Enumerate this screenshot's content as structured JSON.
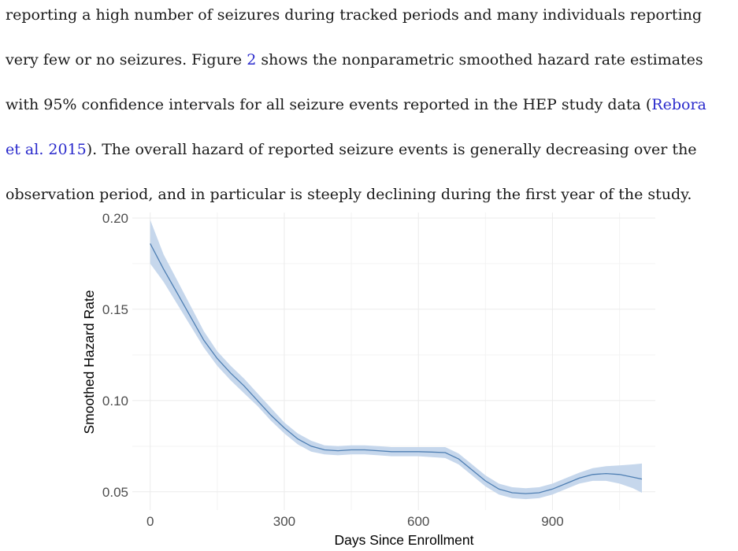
{
  "paragraph": {
    "line1": "reporting a high number of seizures during tracked periods and many individuals reporting",
    "line2_pre": "very few or no seizures. Figure ",
    "line2_fig": "2",
    "line2_post": " shows the nonparametric smoothed hazard rate estimates",
    "line3_pre": "with 95% confidence intervals for all seizure events reported in the HEP study data (",
    "line3_cite": "Rebora",
    "line4_cite": "et al. 2015",
    "line4_post": ").  The overall hazard of reported seizure events is generally decreasing over the",
    "line5": "observation period, and in particular is steeply declining during the first year of the study."
  },
  "chart_data": {
    "type": "line",
    "title": "",
    "xlabel": "Days Since Enrollment",
    "ylabel": "Smoothed Hazard Rate",
    "xlim": [
      -40,
      1130
    ],
    "ylim": [
      0.04,
      0.203
    ],
    "xticks": [
      0,
      300,
      600,
      900
    ],
    "xtick_labels": [
      "0",
      "300",
      "600",
      "900"
    ],
    "yticks": [
      0.05,
      0.1,
      0.15,
      0.2
    ],
    "ytick_labels": [
      "0.05",
      "0.10",
      "0.15",
      "0.20"
    ],
    "grid": true,
    "series_color": "#4f7fb3",
    "ci_color": "#c6d7ec",
    "x": [
      0,
      30,
      60,
      90,
      120,
      150,
      180,
      210,
      240,
      270,
      300,
      330,
      360,
      390,
      420,
      450,
      480,
      510,
      540,
      570,
      600,
      630,
      660,
      690,
      720,
      750,
      780,
      810,
      840,
      870,
      900,
      930,
      960,
      990,
      1020,
      1050,
      1080,
      1100
    ],
    "y": [
      0.186,
      0.172,
      0.159,
      0.146,
      0.133,
      0.123,
      0.115,
      0.108,
      0.1,
      0.092,
      0.085,
      0.079,
      0.075,
      0.073,
      0.0725,
      0.073,
      0.073,
      0.0725,
      0.072,
      0.072,
      0.072,
      0.0718,
      0.0715,
      0.068,
      0.062,
      0.056,
      0.0515,
      0.0495,
      0.049,
      0.0495,
      0.0515,
      0.0545,
      0.0575,
      0.0595,
      0.06,
      0.0595,
      0.058,
      0.057
    ],
    "lower": [
      0.175,
      0.165,
      0.153,
      0.141,
      0.129,
      0.119,
      0.111,
      0.104,
      0.097,
      0.089,
      0.082,
      0.076,
      0.072,
      0.0705,
      0.07,
      0.0705,
      0.0705,
      0.07,
      0.0695,
      0.0695,
      0.0695,
      0.069,
      0.0685,
      0.065,
      0.059,
      0.053,
      0.0485,
      0.0465,
      0.046,
      0.0465,
      0.0485,
      0.0515,
      0.0545,
      0.056,
      0.056,
      0.0545,
      0.052,
      0.0495
    ],
    "upper": [
      0.199,
      0.18,
      0.166,
      0.152,
      0.138,
      0.127,
      0.119,
      0.112,
      0.104,
      0.096,
      0.088,
      0.082,
      0.078,
      0.0755,
      0.075,
      0.0755,
      0.0755,
      0.075,
      0.0745,
      0.0745,
      0.0745,
      0.0745,
      0.0745,
      0.071,
      0.065,
      0.059,
      0.0545,
      0.0525,
      0.052,
      0.0525,
      0.0545,
      0.0575,
      0.0605,
      0.063,
      0.064,
      0.0645,
      0.065,
      0.0655
    ]
  }
}
